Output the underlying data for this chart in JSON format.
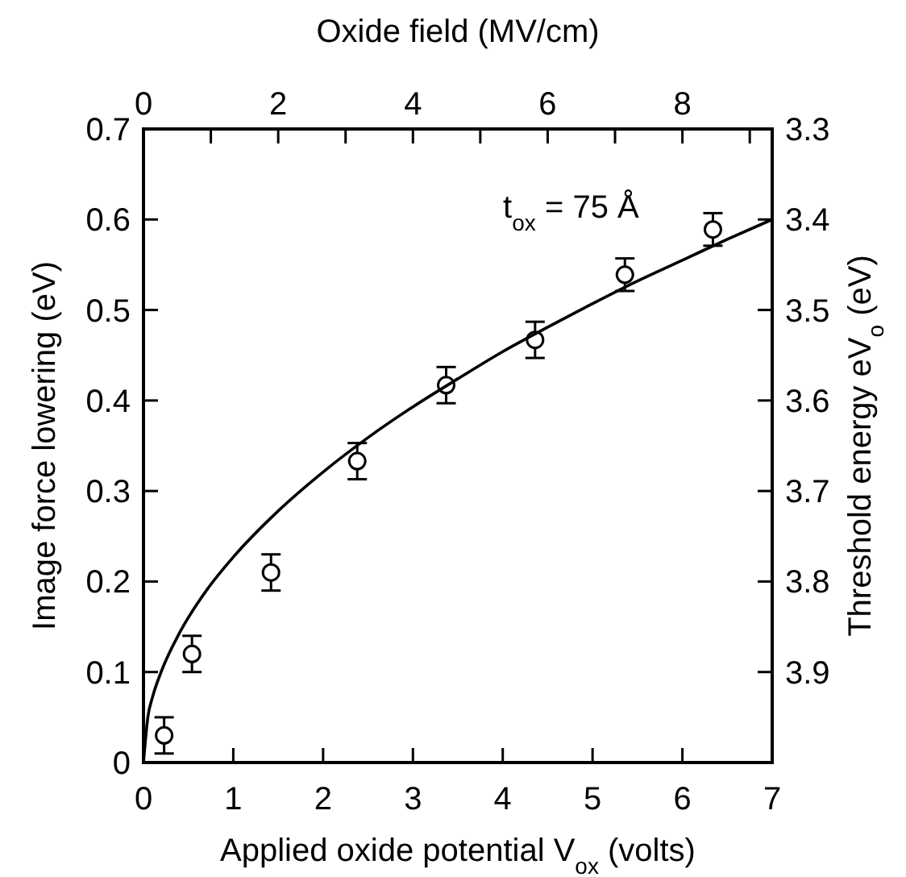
{
  "chart_data": {
    "type": "scatter",
    "xlabel": "Applied oxide potential V$_{ox}$ (volts)",
    "ylabel": "Image force lowering (eV)",
    "y2label": "Threshold energy eV$_{o}$ (eV)",
    "x2label": "Oxide field (MV/cm)",
    "annotations": [
      "t$_{ox}$ = 75 Å"
    ],
    "xlim": [
      0,
      7
    ],
    "xticks": [
      0,
      1,
      2,
      3,
      4,
      5,
      6,
      7
    ],
    "ylim": [
      0,
      0.7
    ],
    "yticks": [
      0,
      0.1,
      0.2,
      0.3,
      0.4,
      0.5,
      0.6,
      0.7
    ],
    "y2lim": [
      4.0,
      3.3
    ],
    "y2ticks": [
      {
        "value": 4.0,
        "label": null
      },
      3.9,
      3.8,
      3.7,
      3.6,
      3.5,
      3.4,
      3.3
    ],
    "x2lim": [
      0,
      9.333
    ],
    "x2ticks": [
      0,
      {
        "value": 1,
        "label": null
      },
      2,
      {
        "value": 3,
        "label": null
      },
      4,
      {
        "value": 5,
        "label": null
      },
      6,
      {
        "value": 7,
        "label": null
      },
      8,
      {
        "value": 9,
        "label": null
      }
    ],
    "grid": false,
    "series": [
      {
        "color": "#000000",
        "marker": "circle",
        "x": [
          0.23,
          0.54,
          1.42,
          2.38,
          3.37,
          4.36,
          5.36,
          6.34
        ],
        "values": [
          0.03,
          0.12,
          0.21,
          0.333,
          0.417,
          0.467,
          0.539,
          0.589
        ],
        "errors": [
          0.02,
          0.02,
          0.02,
          0.02,
          0.02,
          0.02,
          0.018,
          0.018
        ]
      },
      {
        "type": "line",
        "color": "#000000",
        "marker": "none",
        "line_style": "solid",
        "x": [
          0,
          0.05,
          0.1,
          0.2,
          0.4,
          0.7,
          1,
          1.5,
          2,
          2.5,
          3,
          3.5,
          4,
          4.5,
          5,
          5.5,
          6,
          6.5,
          7
        ],
        "values": [
          0,
          0.051,
          0.072,
          0.101,
          0.143,
          0.19,
          0.227,
          0.278,
          0.321,
          0.359,
          0.393,
          0.424,
          0.454,
          0.481,
          0.507,
          0.532,
          0.555,
          0.578,
          0.6
        ]
      }
    ]
  }
}
